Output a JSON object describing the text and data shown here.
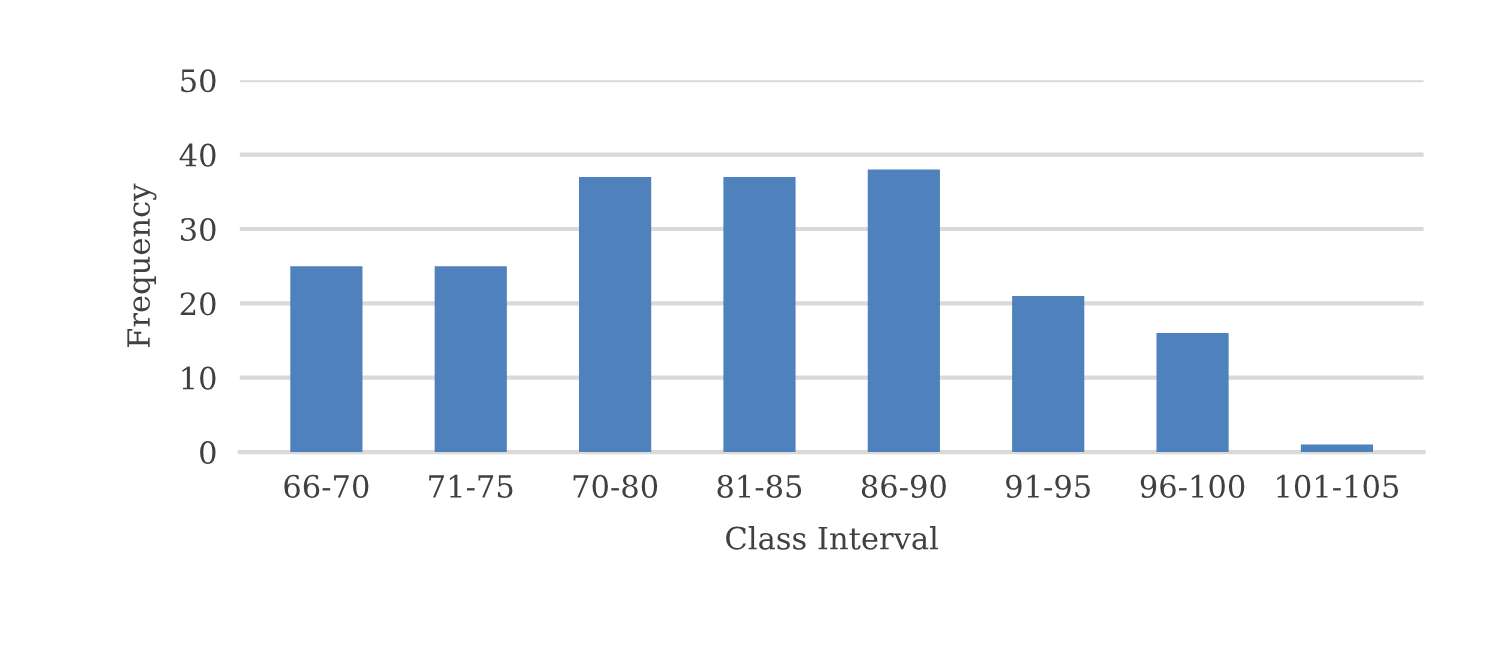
{
  "chart_data": {
    "type": "bar",
    "xlabel": "Class Interval",
    "ylabel": "Frequency",
    "categories": [
      "66-70",
      "71-75",
      "70-80",
      "81-85",
      "86-90",
      "91-95",
      "96-100",
      "101-105"
    ],
    "values": [
      25,
      25,
      37,
      37,
      38,
      21,
      16,
      1
    ],
    "color": "#4f81bd",
    "ylim": [
      0,
      50
    ],
    "yticks": [
      0,
      10,
      20,
      30,
      40,
      50
    ],
    "grid": "y"
  }
}
